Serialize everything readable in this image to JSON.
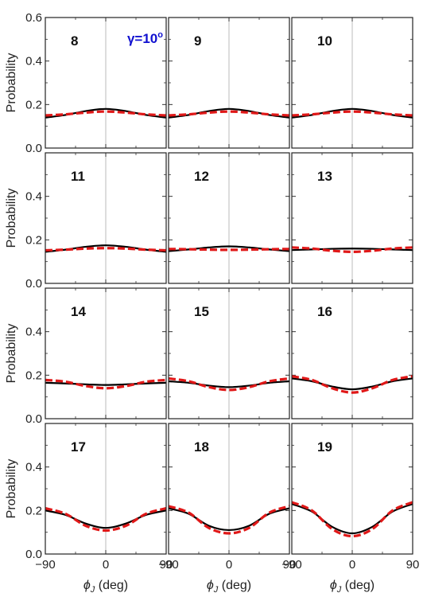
{
  "chart_data": {
    "type": "line",
    "ylabel": "Probability",
    "xlabel": "ϕ",
    "xlabel_sub": "J",
    "xlabel_unit": " (deg)",
    "xlim": [
      -90,
      90
    ],
    "ylim": [
      0.0,
      0.6
    ],
    "xticks": [
      -90,
      0,
      90
    ],
    "xtick_labels": [
      "−90",
      "0",
      "90"
    ],
    "yticks": [
      0.0,
      0.2,
      0.4,
      0.6
    ],
    "ytick_labels": [
      "0.0",
      "0.2",
      "0.4",
      "0.6"
    ],
    "annotation": {
      "prefix": "γ=10",
      "sup": "o"
    },
    "series_styles": [
      {
        "color": "#000000",
        "dash": "solid"
      },
      {
        "color": "#e01818",
        "dash": "dashed"
      }
    ],
    "reference_line_x": 0,
    "panels": [
      {
        "label": "8",
        "series": [
          {
            "x": [
              -90,
              -60,
              -30,
              0,
              30,
              60,
              90
            ],
            "values": [
              0.14,
              0.152,
              0.17,
              0.18,
              0.17,
              0.152,
              0.14
            ]
          },
          {
            "x": [
              -90,
              -60,
              -30,
              0,
              30,
              60,
              90
            ],
            "values": [
              0.15,
              0.155,
              0.163,
              0.168,
              0.163,
              0.155,
              0.15
            ]
          }
        ]
      },
      {
        "label": "9",
        "series": [
          {
            "x": [
              -90,
              -60,
              -30,
              0,
              30,
              60,
              90
            ],
            "values": [
              0.14,
              0.152,
              0.17,
              0.18,
              0.17,
              0.152,
              0.14
            ]
          },
          {
            "x": [
              -90,
              -60,
              -30,
              0,
              30,
              60,
              90
            ],
            "values": [
              0.15,
              0.155,
              0.163,
              0.168,
              0.163,
              0.155,
              0.15
            ]
          }
        ]
      },
      {
        "label": "10",
        "series": [
          {
            "x": [
              -90,
              -60,
              -30,
              0,
              30,
              60,
              90
            ],
            "values": [
              0.14,
              0.152,
              0.17,
              0.18,
              0.17,
              0.152,
              0.14
            ]
          },
          {
            "x": [
              -90,
              -60,
              -30,
              0,
              30,
              60,
              90
            ],
            "values": [
              0.15,
              0.155,
              0.163,
              0.168,
              0.163,
              0.155,
              0.15
            ]
          }
        ]
      },
      {
        "label": "11",
        "series": [
          {
            "x": [
              -90,
              -60,
              -30,
              0,
              30,
              60,
              90
            ],
            "values": [
              0.145,
              0.155,
              0.168,
              0.175,
              0.168,
              0.155,
              0.145
            ]
          },
          {
            "x": [
              -90,
              -60,
              -30,
              0,
              30,
              60,
              90
            ],
            "values": [
              0.152,
              0.155,
              0.16,
              0.162,
              0.16,
              0.155,
              0.152
            ]
          }
        ]
      },
      {
        "label": "12",
        "series": [
          {
            "x": [
              -90,
              -60,
              -30,
              0,
              30,
              60,
              90
            ],
            "values": [
              0.148,
              0.156,
              0.165,
              0.17,
              0.165,
              0.156,
              0.148
            ]
          },
          {
            "x": [
              -90,
              -60,
              -30,
              0,
              30,
              60,
              90
            ],
            "values": [
              0.158,
              0.157,
              0.155,
              0.154,
              0.155,
              0.157,
              0.158
            ]
          }
        ]
      },
      {
        "label": "13",
        "series": [
          {
            "x": [
              -90,
              -60,
              -30,
              0,
              30,
              60,
              90
            ],
            "values": [
              0.153,
              0.156,
              0.159,
              0.16,
              0.159,
              0.156,
              0.153
            ]
          },
          {
            "x": [
              -90,
              -60,
              -30,
              0,
              30,
              60,
              90
            ],
            "values": [
              0.165,
              0.16,
              0.15,
              0.145,
              0.15,
              0.16,
              0.165
            ]
          }
        ]
      },
      {
        "label": "14",
        "series": [
          {
            "x": [
              -90,
              -60,
              -30,
              0,
              30,
              60,
              90
            ],
            "values": [
              0.165,
              0.162,
              0.158,
              0.155,
              0.158,
              0.162,
              0.165
            ]
          },
          {
            "x": [
              -90,
              -60,
              -30,
              0,
              30,
              60,
              90
            ],
            "values": [
              0.178,
              0.17,
              0.15,
              0.14,
              0.15,
              0.17,
              0.178
            ]
          }
        ]
      },
      {
        "label": "15",
        "series": [
          {
            "x": [
              -90,
              -60,
              -30,
              0,
              30,
              60,
              90
            ],
            "values": [
              0.172,
              0.165,
              0.152,
              0.145,
              0.152,
              0.165,
              0.172
            ]
          },
          {
            "x": [
              -90,
              -60,
              -30,
              0,
              30,
              60,
              90
            ],
            "values": [
              0.185,
              0.172,
              0.145,
              0.132,
              0.145,
              0.172,
              0.185
            ]
          }
        ]
      },
      {
        "label": "16",
        "series": [
          {
            "x": [
              -90,
              -60,
              -30,
              0,
              30,
              60,
              90
            ],
            "values": [
              0.185,
              0.172,
              0.148,
              0.135,
              0.148,
              0.172,
              0.185
            ]
          },
          {
            "x": [
              -90,
              -60,
              -30,
              0,
              30,
              60,
              90
            ],
            "values": [
              0.195,
              0.178,
              0.14,
              0.12,
              0.14,
              0.178,
              0.195
            ]
          }
        ]
      },
      {
        "label": "17",
        "series": [
          {
            "x": [
              -90,
              -60,
              -30,
              0,
              30,
              60,
              90
            ],
            "values": [
              0.2,
              0.18,
              0.14,
              0.12,
              0.14,
              0.18,
              0.2
            ]
          },
          {
            "x": [
              -90,
              -60,
              -30,
              0,
              30,
              60,
              90
            ],
            "values": [
              0.21,
              0.185,
              0.13,
              0.108,
              0.13,
              0.185,
              0.21
            ]
          }
        ]
      },
      {
        "label": "18",
        "series": [
          {
            "x": [
              -90,
              -60,
              -30,
              0,
              30,
              60,
              90
            ],
            "values": [
              0.21,
              0.185,
              0.13,
              0.11,
              0.13,
              0.185,
              0.21
            ]
          },
          {
            "x": [
              -90,
              -60,
              -30,
              0,
              30,
              60,
              90
            ],
            "values": [
              0.22,
              0.19,
              0.12,
              0.095,
              0.12,
              0.19,
              0.22
            ]
          }
        ]
      },
      {
        "label": "19",
        "series": [
          {
            "x": [
              -90,
              -60,
              -30,
              0,
              30,
              60,
              90
            ],
            "values": [
              0.23,
              0.195,
              0.125,
              0.095,
              0.125,
              0.195,
              0.23
            ]
          },
          {
            "x": [
              -90,
              -60,
              -30,
              0,
              30,
              60,
              90
            ],
            "values": [
              0.238,
              0.2,
              0.115,
              0.082,
              0.115,
              0.2,
              0.238
            ]
          }
        ]
      }
    ]
  }
}
